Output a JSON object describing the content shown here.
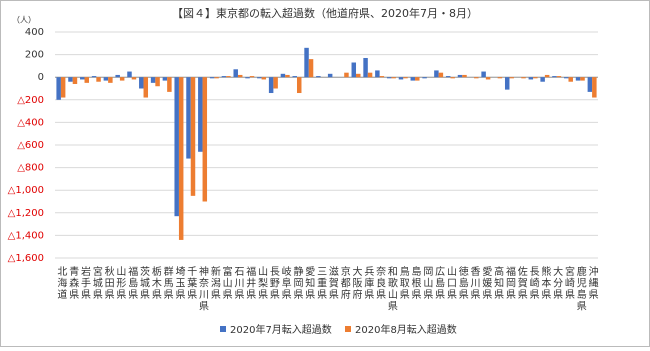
{
  "chart_data": {
    "type": "bar",
    "title": "【図４】東京都の転入超過数（他道府県、2020年7月・8月）",
    "y_axis_label": "（人）",
    "categories": [
      "北海道",
      "青森県",
      "岩手県",
      "宮城県",
      "秋田県",
      "山形県",
      "福島県",
      "茨城県",
      "栃木県",
      "群馬県",
      "埼玉県",
      "千葉県",
      "神奈川県",
      "新潟県",
      "富山県",
      "石川県",
      "福井県",
      "山梨県",
      "長野県",
      "岐阜県",
      "静岡県",
      "愛知県",
      "三重県",
      "滋賀県",
      "京都府",
      "大阪府",
      "兵庫県",
      "奈良県",
      "和歌山県",
      "鳥取県",
      "島根県",
      "岡山県",
      "広島県",
      "山口県",
      "徳島県",
      "香川県",
      "愛媛県",
      "高知県",
      "福岡県",
      "佐賀県",
      "長崎県",
      "熊本県",
      "大分県",
      "宮崎県",
      "鹿児島県",
      "沖縄県"
    ],
    "series": [
      {
        "name": "2020年7月転入超過数",
        "color": "#4472c4",
        "values": [
          -200,
          -40,
          -20,
          10,
          -30,
          20,
          50,
          -100,
          -50,
          -30,
          -1230,
          -720,
          -660,
          -10,
          10,
          70,
          -10,
          -10,
          -140,
          30,
          10,
          260,
          10,
          30,
          0,
          130,
          170,
          60,
          -10,
          -20,
          -30,
          -10,
          60,
          10,
          20,
          0,
          50,
          0,
          -110,
          0,
          -20,
          -40,
          10,
          -10,
          -30,
          -130
        ]
      },
      {
        "name": "2020年8月転入超過数",
        "color": "#ed7d31",
        "values": [
          -180,
          -60,
          -50,
          -40,
          -50,
          -30,
          -20,
          -180,
          -80,
          -130,
          -1440,
          -1050,
          -1100,
          -10,
          10,
          20,
          10,
          -20,
          -100,
          20,
          -140,
          160,
          0,
          0,
          40,
          30,
          40,
          10,
          -10,
          -10,
          -30,
          0,
          40,
          -10,
          20,
          -10,
          -20,
          -10,
          -10,
          -10,
          -10,
          20,
          10,
          -40,
          -30,
          -180
        ]
      }
    ],
    "ylim": [
      -1600,
      400
    ],
    "yticks": [
      400,
      200,
      0,
      {
        "value": -200,
        "label": "△200"
      },
      {
        "value": -400,
        "label": "△400"
      },
      {
        "value": -600,
        "label": "△600"
      },
      {
        "value": -800,
        "label": "△800"
      },
      {
        "value": -1000,
        "label": "△1,000"
      },
      {
        "value": -1200,
        "label": "△1,200"
      },
      {
        "value": -1400,
        "label": "△1,400"
      },
      {
        "value": -1600,
        "label": "△1,600"
      }
    ],
    "negative_tick_color": "#e00000",
    "grid": true,
    "legend_position": "bottom"
  }
}
